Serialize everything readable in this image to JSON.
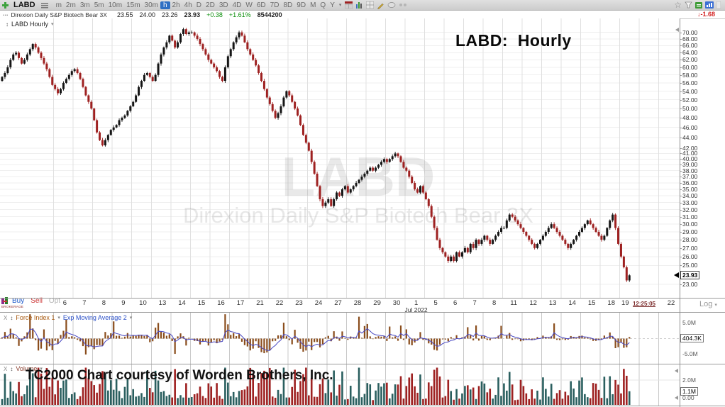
{
  "toolbar": {
    "symbol": "LABD",
    "timeframes": [
      "m",
      "2m",
      "3m",
      "5m",
      "10m",
      "15m",
      "30m",
      "h",
      "2h",
      "4h",
      "D",
      "2D",
      "3D",
      "4D",
      "W",
      "6D",
      "7D",
      "8D",
      "9D",
      "M",
      "Q",
      "Y"
    ],
    "active_timeframe": "h",
    "dropdown_caret": "▾"
  },
  "quote": {
    "menu_dots": "...",
    "name": "Direxion Daily S&P Biotech Bear 3X",
    "open": "23.55",
    "high": "24.00",
    "low": "23.26",
    "last": "23.93",
    "change": "+0.38",
    "change_pct": "+1.61%",
    "volume": "8544200",
    "right_change": "-1.68",
    "down_arrow": "↓"
  },
  "main_pane": {
    "updown_icon": "↕",
    "pane_label": "LABD Hourly",
    "caret": "▾",
    "chart_title": "LABD:  Hourly",
    "watermark_line1": "LABD",
    "watermark_line2": "Direxion Daily S&P Biotech Bear 3X",
    "price_axis_labels": [
      "70.00",
      "68.00",
      "66.00",
      "64.00",
      "62.00",
      "60.00",
      "58.00",
      "56.00",
      "54.00",
      "52.00",
      "50.00",
      "48.00",
      "46.00",
      "44.00",
      "42.00",
      "41.00",
      "40.00",
      "39.00",
      "38.00",
      "37.00",
      "36.00",
      "35.00",
      "34.00",
      "33.00",
      "32.00",
      "31.00",
      "30.00",
      "29.00",
      "28.00",
      "27.00",
      "26.00",
      "25.00",
      "23.00"
    ],
    "last_price_box": "23.93"
  },
  "date_row": {
    "buy": "Buy",
    "sell": "Sell",
    "opt": "Opt",
    "broker_caption": "BROKERAGE",
    "x_labels": [
      "6",
      "7",
      "8",
      "9",
      "10",
      "13",
      "14",
      "15",
      "16",
      "17",
      "21",
      "22",
      "23",
      "24",
      "27",
      "28",
      "29",
      "30",
      "1",
      "5",
      "6",
      "7",
      "8",
      "11",
      "12",
      "13",
      "14",
      "15",
      "18",
      "19"
    ],
    "month_label": "Jul 2022",
    "month_under_index": 18,
    "time_marker": "12:25:05",
    "future_label": "22",
    "scale_label": "Log",
    "scale_caret": "▾"
  },
  "force_pane": {
    "close_label": "X",
    "updown_icon": "↕",
    "indicator1": "Force Index 1",
    "indicator2": "Exp Moving Average 2",
    "caret": "▾",
    "axis_top": "5.0M",
    "axis_box": "404.3K",
    "axis_bottom": "-5.0M"
  },
  "volume_pane": {
    "close_label": "X",
    "updown_icon": "↕",
    "indicator": "Volume",
    "caret": "▾",
    "watermark": "TC2000 Chart courtesy of Worden Brothers, Inc.",
    "axis_top": "2.0M",
    "axis_box": "1.1M",
    "axis_bottom": "0.00"
  },
  "colors": {
    "up_bar": "#151515",
    "down_bar": "#9e2121",
    "volume_up": "#2a5f5f",
    "volume_down": "#9e2121",
    "force_bar": "#8a4d1c",
    "ema_line": "#4747c2",
    "active_tf_blue": "#2e6fc3",
    "gain_green": "#0b8f0b",
    "loss_red": "#d32222"
  },
  "chart_data": {
    "type": "candlestick",
    "symbol": "LABD",
    "title": "LABD:  Hourly",
    "timeframe": "hourly",
    "y_scale": "log",
    "ylim": [
      22.6,
      72.5
    ],
    "y_axis_ticks": [
      70,
      68,
      66,
      64,
      62,
      60,
      58,
      56,
      54,
      52,
      50,
      48,
      46,
      44,
      42,
      41,
      40,
      39,
      38,
      37,
      36,
      35,
      34,
      33,
      32,
      31,
      30,
      29,
      28,
      27,
      26,
      25,
      23
    ],
    "x_day_labels": [
      "6",
      "7",
      "8",
      "9",
      "10",
      "13",
      "14",
      "15",
      "16",
      "17",
      "21",
      "22",
      "23",
      "24",
      "27",
      "28",
      "29",
      "30",
      "1 Jul 2022",
      "5",
      "6",
      "7",
      "8",
      "11",
      "12",
      "13",
      "14",
      "15",
      "18",
      "19"
    ],
    "session_open": 23.55,
    "session_high": 24.0,
    "session_low": 23.26,
    "last": 23.93,
    "open_first": 56.5,
    "closes": [
      57.5,
      58.5,
      60,
      62,
      63.5,
      64,
      62.5,
      61,
      62,
      63.5,
      65,
      66.5,
      65.5,
      64,
      62.5,
      61,
      59.5,
      57.5,
      55.5,
      54.5,
      53.5,
      54.5,
      56,
      57,
      58,
      59,
      59.5,
      58.5,
      57,
      55,
      53,
      51.5,
      50,
      47.5,
      45,
      43.5,
      42.5,
      43.5,
      44.5,
      45.5,
      46,
      46.5,
      47.5,
      48,
      48.5,
      49.5,
      50.5,
      51.5,
      53,
      55,
      56.5,
      58,
      58.5,
      57.5,
      56.5,
      58,
      61,
      63.5,
      65.5,
      67,
      69,
      67.5,
      65.5,
      67,
      69.5,
      71,
      69.5,
      70,
      70,
      69,
      68,
      66.5,
      65,
      63.5,
      62,
      61,
      60,
      59,
      57.5,
      56.5,
      60,
      63,
      65,
      67,
      68.5,
      70,
      69,
      67,
      65,
      63.5,
      62,
      60.5,
      58.5,
      56.5,
      54.5,
      52.5,
      51,
      49.5,
      48,
      49,
      50.5,
      52.5,
      54,
      53,
      51.5,
      50,
      48.5,
      46.5,
      44.5,
      43,
      41.5,
      39.5,
      37.5,
      35.5,
      33.5,
      32.5,
      33,
      33.5,
      32.5,
      33.5,
      34.5,
      34,
      35,
      35.5,
      34.5,
      35,
      35.5,
      36,
      36.5,
      37,
      37.5,
      38,
      38.5,
      38,
      38.5,
      39,
      39.5,
      40,
      39.5,
      40,
      40.5,
      41,
      40.5,
      39.5,
      38.5,
      38,
      37,
      36,
      35,
      34.5,
      35.5,
      34.5,
      33.5,
      32.5,
      31,
      29.5,
      28,
      27,
      26.5,
      26,
      25.5,
      26,
      25.5,
      26.5,
      26,
      26.5,
      27,
      26.5,
      27.5,
      27,
      28,
      27.5,
      28,
      28.5,
      28,
      27.5,
      28,
      28.5,
      29,
      29.5,
      29.5,
      30.5,
      31.3,
      31,
      30.5,
      30,
      29.5,
      29,
      28.5,
      28,
      27.5,
      27,
      27.5,
      28,
      28.5,
      29,
      29.5,
      30,
      29.5,
      29,
      28.5,
      28,
      27.5,
      27,
      27.5,
      28,
      28.5,
      29,
      29.5,
      30,
      30.5,
      30,
      29.5,
      29,
      28.5,
      28,
      28.5,
      29.5,
      30.5,
      31.3,
      29.5,
      27.5,
      26,
      24.8,
      23.4,
      23.93
    ],
    "bars_per_day": 7,
    "lower_panes": [
      {
        "name": "Force Index 1 with Exp Moving Average 2",
        "axis_range": [
          "-5.0M",
          "5.0M"
        ],
        "last_value": "404.3K"
      },
      {
        "name": "Volume",
        "axis_range": [
          "0.00",
          "2.0M"
        ],
        "last_value": "1.1M"
      }
    ]
  }
}
